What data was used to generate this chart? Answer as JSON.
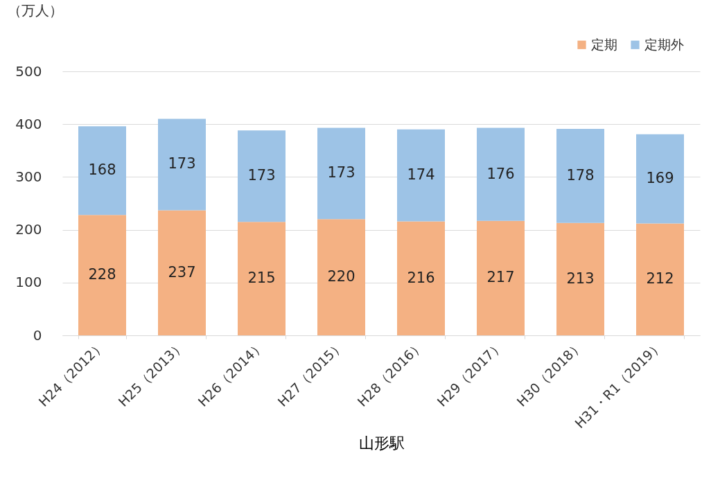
{
  "chart_data": {
    "type": "bar",
    "stacked": true,
    "xlabel": "山形駅",
    "ylabel": "（万人）",
    "categories": [
      "H24（2012）",
      "H25（2013）",
      "H26（2014）",
      "H27（2015）",
      "H28（2016）",
      "H29（2017）",
      "H30（2018）",
      "H31・R1（2019）"
    ],
    "series": [
      {
        "name": "定期",
        "color": "#f4b183",
        "values": [
          228,
          237,
          215,
          220,
          216,
          217,
          213,
          212
        ]
      },
      {
        "name": "定期外",
        "color": "#9dc3e6",
        "values": [
          168,
          173,
          173,
          173,
          174,
          176,
          178,
          169
        ]
      }
    ],
    "ylim": [
      0,
      500
    ],
    "yticks": [
      0,
      100,
      200,
      300,
      400,
      500
    ],
    "grid": "y",
    "legend": "top right",
    "data_labels": true
  }
}
